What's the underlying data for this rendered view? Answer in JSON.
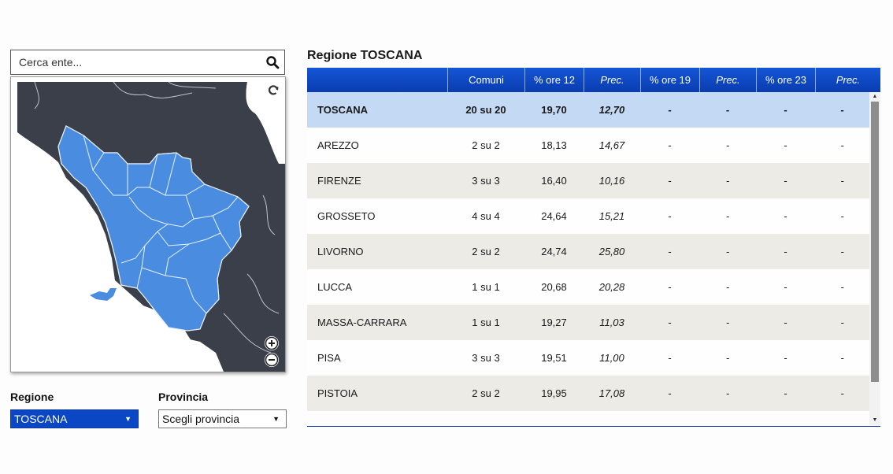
{
  "search": {
    "placeholder": "Cerca ente..."
  },
  "icons": {
    "search": "search-icon",
    "refresh": "refresh-icon",
    "zoom_in": "zoom-in-icon",
    "zoom_out": "zoom-out-icon",
    "dropdown": "chevron-down-icon"
  },
  "filters": {
    "regione_label": "Regione",
    "regione_value": "TOSCANA",
    "provincia_label": "Provincia",
    "provincia_value": "Scegli provincia"
  },
  "colors": {
    "accent": "#0b47c4",
    "map_highlight": "#4a8de0",
    "map_background": "#3a3f4a",
    "total_row": "#c3d9f4",
    "alt_row": "#ecebe6"
  },
  "table": {
    "title": "Regione TOSCANA",
    "headers": [
      "",
      "Comuni",
      "% ore 12",
      "Prec.",
      "% ore 19",
      "Prec.",
      "% ore 23",
      "Prec."
    ],
    "rows": [
      {
        "name": "TOSCANA",
        "comuni": "20 su 20",
        "ore12": "19,70",
        "prec12": "12,70",
        "ore19": "-",
        "prec19": "-",
        "ore23": "-",
        "prec23": "-"
      },
      {
        "name": "AREZZO",
        "comuni": "2 su 2",
        "ore12": "18,13",
        "prec12": "14,67",
        "ore19": "-",
        "prec19": "-",
        "ore23": "-",
        "prec23": "-"
      },
      {
        "name": "FIRENZE",
        "comuni": "3 su 3",
        "ore12": "16,40",
        "prec12": "10,16",
        "ore19": "-",
        "prec19": "-",
        "ore23": "-",
        "prec23": "-"
      },
      {
        "name": "GROSSETO",
        "comuni": "4 su 4",
        "ore12": "24,64",
        "prec12": "15,21",
        "ore19": "-",
        "prec19": "-",
        "ore23": "-",
        "prec23": "-"
      },
      {
        "name": "LIVORNO",
        "comuni": "2 su 2",
        "ore12": "24,74",
        "prec12": "25,80",
        "ore19": "-",
        "prec19": "-",
        "ore23": "-",
        "prec23": "-"
      },
      {
        "name": "LUCCA",
        "comuni": "1 su 1",
        "ore12": "20,68",
        "prec12": "20,28",
        "ore19": "-",
        "prec19": "-",
        "ore23": "-",
        "prec23": "-"
      },
      {
        "name": "MASSA-CARRARA",
        "comuni": "1 su 1",
        "ore12": "19,27",
        "prec12": "11,03",
        "ore19": "-",
        "prec19": "-",
        "ore23": "-",
        "prec23": "-"
      },
      {
        "name": "PISA",
        "comuni": "3 su 3",
        "ore12": "19,51",
        "prec12": "11,00",
        "ore19": "-",
        "prec19": "-",
        "ore23": "-",
        "prec23": "-"
      },
      {
        "name": "PISTOIA",
        "comuni": "2 su 2",
        "ore12": "19,95",
        "prec12": "17,08",
        "ore19": "-",
        "prec19": "-",
        "ore23": "-",
        "prec23": "-"
      }
    ]
  }
}
